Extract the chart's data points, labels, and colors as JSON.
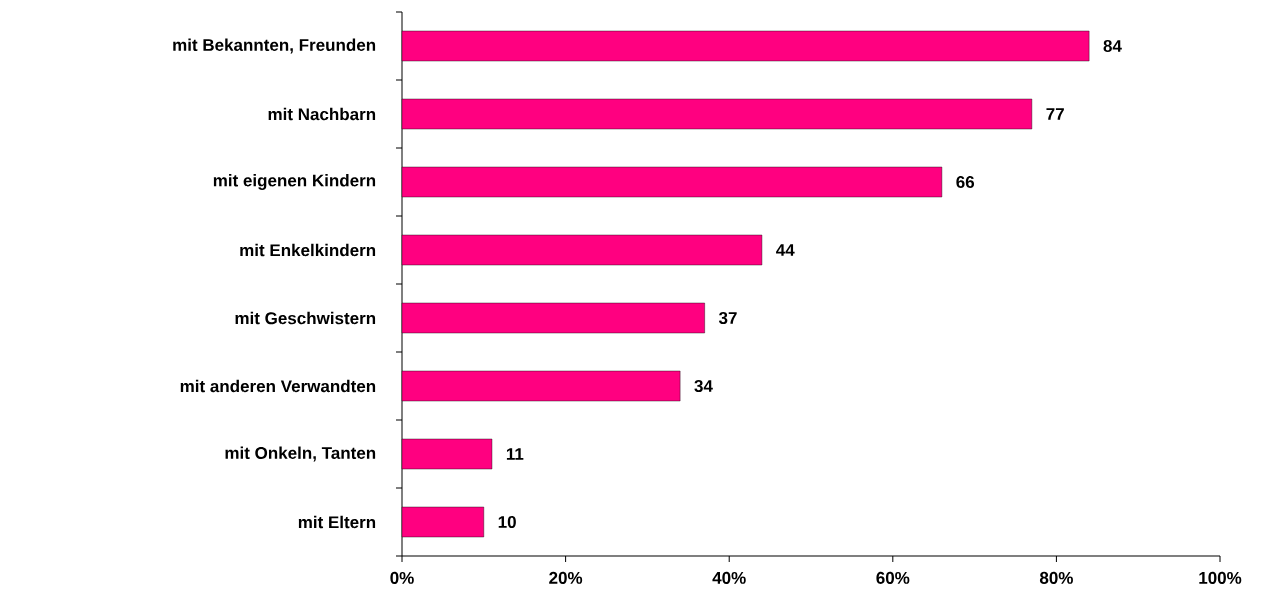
{
  "chart_data": {
    "type": "bar",
    "orientation": "horizontal",
    "categories": [
      "mit Bekannten, Freunden",
      "mit Nachbarn",
      "mit eigenen Kindern",
      "mit Enkelkindern",
      "mit Geschwistern",
      "mit anderen Verwandten",
      "mit Onkeln, Tanten",
      "mit Eltern"
    ],
    "values": [
      84,
      77,
      66,
      44,
      37,
      34,
      11,
      10
    ],
    "color": "#ff0080",
    "xlim": [
      0,
      100
    ],
    "xticks": [
      {
        "value": 0,
        "label": "0%"
      },
      {
        "value": 20,
        "label": "20%"
      },
      {
        "value": 40,
        "label": "40%"
      },
      {
        "value": 60,
        "label": "60%"
      },
      {
        "value": 80,
        "label": "80%"
      },
      {
        "value": 100,
        "label": "100%"
      }
    ],
    "data_labels": true
  }
}
